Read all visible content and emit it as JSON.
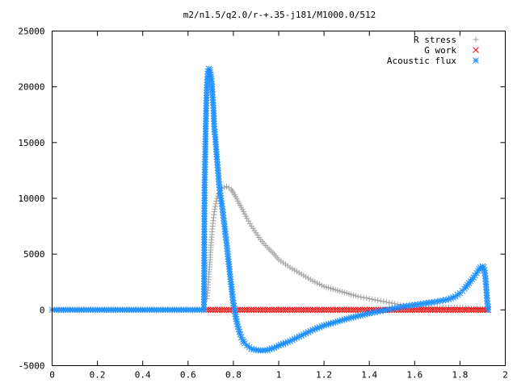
{
  "chart_data": {
    "type": "scatter",
    "title": "m2/n1.5/q2.0/r-+.35-j181/M1000.0/512",
    "xlabel": "",
    "ylabel": "",
    "xlim": [
      0,
      2
    ],
    "ylim": [
      -5000,
      25000
    ],
    "x_ticks": [
      "0",
      "0.2",
      "0.4",
      "0.6",
      "0.8",
      "1",
      "1.2",
      "1.4",
      "1.6",
      "1.8",
      "2"
    ],
    "y_ticks": [
      "-5000",
      "0",
      "5000",
      "10000",
      "15000",
      "20000",
      "25000"
    ],
    "legend_position": "top-right",
    "grid": false,
    "series": [
      {
        "name": "R stress",
        "marker": "plus",
        "color": "#a0a0a0",
        "points": [
          [
            0.683,
            1000
          ],
          [
            0.688,
            2000
          ],
          [
            0.692,
            3200
          ],
          [
            0.697,
            4500
          ],
          [
            0.701,
            5800
          ],
          [
            0.706,
            7000
          ],
          [
            0.711,
            8000
          ],
          [
            0.716,
            8800
          ],
          [
            0.722,
            9500
          ],
          [
            0.728,
            10000
          ],
          [
            0.735,
            10400
          ],
          [
            0.742,
            10700
          ],
          [
            0.75,
            10900
          ],
          [
            0.76,
            11000
          ],
          [
            0.77,
            11050
          ],
          [
            0.78,
            10950
          ],
          [
            0.79,
            10800
          ],
          [
            0.8,
            10500
          ],
          [
            0.81,
            10150
          ],
          [
            0.82,
            9750
          ],
          [
            0.84,
            9000
          ],
          [
            0.86,
            8200
          ],
          [
            0.88,
            7500
          ],
          [
            0.9,
            6900
          ],
          [
            0.92,
            6300
          ],
          [
            0.95,
            5600
          ],
          [
            0.98,
            5000
          ],
          [
            1.0,
            4500
          ],
          [
            1.05,
            3800
          ],
          [
            1.1,
            3200
          ],
          [
            1.15,
            2600
          ],
          [
            1.2,
            2100
          ],
          [
            1.25,
            1800
          ],
          [
            1.3,
            1500
          ],
          [
            1.35,
            1200
          ],
          [
            1.4,
            1000
          ],
          [
            1.45,
            800
          ],
          [
            1.5,
            600
          ],
          [
            1.55,
            400
          ],
          [
            1.6,
            300
          ],
          [
            1.65,
            250
          ],
          [
            1.7,
            200
          ],
          [
            1.75,
            200
          ],
          [
            1.8,
            200
          ],
          [
            1.85,
            150
          ],
          [
            1.9,
            100
          ],
          [
            1.92,
            50
          ]
        ]
      },
      {
        "name": "G work",
        "marker": "cross",
        "color": "#ff0000",
        "points": [
          [
            0.68,
            0
          ],
          [
            0.72,
            0
          ],
          [
            0.76,
            0
          ],
          [
            0.8,
            0
          ],
          [
            0.84,
            0
          ],
          [
            0.88,
            0
          ],
          [
            0.92,
            0
          ],
          [
            0.96,
            0
          ],
          [
            1.0,
            0
          ],
          [
            1.04,
            0
          ],
          [
            1.08,
            0
          ],
          [
            1.12,
            0
          ],
          [
            1.16,
            0
          ],
          [
            1.2,
            0
          ],
          [
            1.24,
            0
          ],
          [
            1.28,
            0
          ],
          [
            1.32,
            0
          ],
          [
            1.36,
            0
          ],
          [
            1.4,
            0
          ],
          [
            1.44,
            0
          ],
          [
            1.48,
            0
          ],
          [
            1.52,
            0
          ],
          [
            1.56,
            0
          ],
          [
            1.6,
            0
          ],
          [
            1.64,
            0
          ],
          [
            1.68,
            0
          ],
          [
            1.72,
            0
          ],
          [
            1.76,
            0
          ],
          [
            1.8,
            0
          ],
          [
            1.84,
            0
          ],
          [
            1.88,
            0
          ],
          [
            1.92,
            0
          ]
        ]
      },
      {
        "name": "Acoustic flux",
        "marker": "star",
        "color": "#1e90ff",
        "points": [
          [
            0.0,
            0
          ],
          [
            0.04,
            0
          ],
          [
            0.08,
            0
          ],
          [
            0.12,
            0
          ],
          [
            0.16,
            0
          ],
          [
            0.2,
            0
          ],
          [
            0.24,
            0
          ],
          [
            0.28,
            0
          ],
          [
            0.32,
            0
          ],
          [
            0.36,
            0
          ],
          [
            0.4,
            0
          ],
          [
            0.44,
            0
          ],
          [
            0.48,
            0
          ],
          [
            0.52,
            0
          ],
          [
            0.56,
            0
          ],
          [
            0.6,
            0
          ],
          [
            0.64,
            0
          ],
          [
            0.67,
            0
          ],
          [
            0.673,
            11200
          ],
          [
            0.68,
            18300
          ],
          [
            0.684,
            20400
          ],
          [
            0.688,
            21400
          ],
          [
            0.692,
            21600
          ],
          [
            0.696,
            21500
          ],
          [
            0.7,
            21100
          ],
          [
            0.704,
            20500
          ],
          [
            0.708,
            19300
          ],
          [
            0.712,
            18100
          ],
          [
            0.716,
            16200
          ],
          [
            0.72,
            15500
          ],
          [
            0.724,
            14400
          ],
          [
            0.728,
            13500
          ],
          [
            0.732,
            12500
          ],
          [
            0.736,
            11500
          ],
          [
            0.74,
            10700
          ],
          [
            0.745,
            10000
          ],
          [
            0.75,
            9300
          ],
          [
            0.755,
            8500
          ],
          [
            0.76,
            7700
          ],
          [
            0.765,
            6800
          ],
          [
            0.77,
            6000
          ],
          [
            0.775,
            5000
          ],
          [
            0.78,
            4100
          ],
          [
            0.785,
            3200
          ],
          [
            0.79,
            2300
          ],
          [
            0.795,
            1400
          ],
          [
            0.8,
            600
          ],
          [
            0.81,
            -600
          ],
          [
            0.82,
            -1500
          ],
          [
            0.83,
            -2200
          ],
          [
            0.84,
            -2700
          ],
          [
            0.85,
            -3000
          ],
          [
            0.86,
            -3200
          ],
          [
            0.88,
            -3500
          ],
          [
            0.9,
            -3600
          ],
          [
            0.92,
            -3650
          ],
          [
            0.95,
            -3600
          ],
          [
            0.98,
            -3400
          ],
          [
            1.0,
            -3200
          ],
          [
            1.05,
            -2800
          ],
          [
            1.1,
            -2300
          ],
          [
            1.15,
            -1800
          ],
          [
            1.2,
            -1400
          ],
          [
            1.25,
            -1100
          ],
          [
            1.3,
            -800
          ],
          [
            1.35,
            -550
          ],
          [
            1.4,
            -300
          ],
          [
            1.45,
            -100
          ],
          [
            1.5,
            100
          ],
          [
            1.55,
            300
          ],
          [
            1.6,
            450
          ],
          [
            1.65,
            600
          ],
          [
            1.7,
            750
          ],
          [
            1.75,
            950
          ],
          [
            1.78,
            1200
          ],
          [
            1.8,
            1500
          ],
          [
            1.82,
            1900
          ],
          [
            1.84,
            2400
          ],
          [
            1.86,
            2900
          ],
          [
            1.88,
            3500
          ],
          [
            1.89,
            3800
          ],
          [
            1.9,
            3900
          ],
          [
            1.905,
            3800
          ],
          [
            1.91,
            3300
          ],
          [
            1.915,
            2300
          ],
          [
            1.92,
            800
          ],
          [
            1.925,
            0
          ]
        ]
      }
    ]
  }
}
